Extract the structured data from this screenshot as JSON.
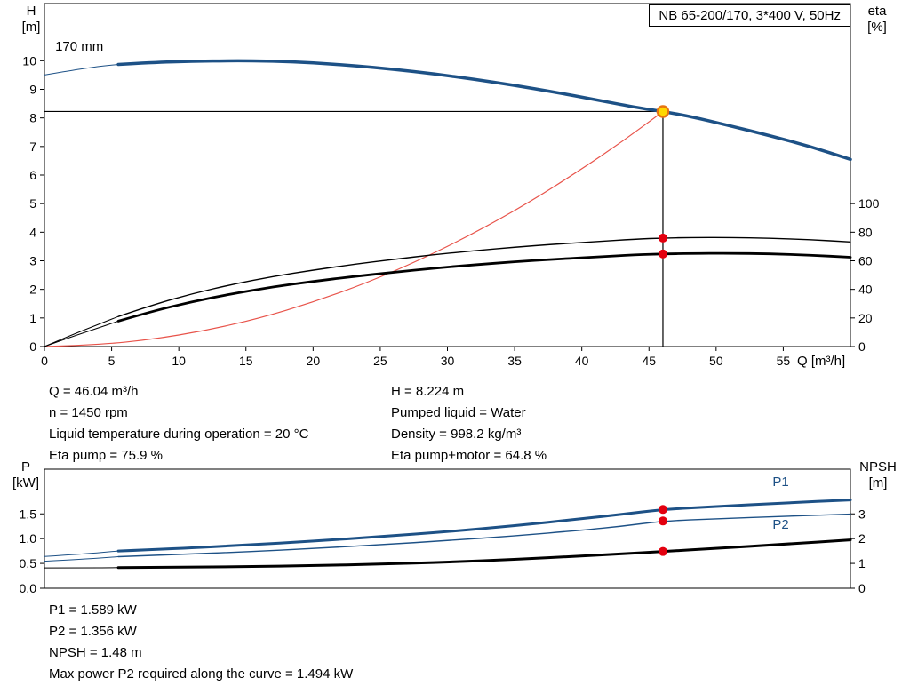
{
  "title_box": "NB 65-200/170, 3*400 V, 50Hz",
  "colors": {
    "curve_blue": "#1d5186",
    "system_curve_red": "#e8534a",
    "dot_red": "#e3000f",
    "duty_fill": "#ffd800",
    "duty_ring": "#e87511",
    "axis_black": "#000000"
  },
  "axis_labels": {
    "h_top": "H",
    "h_unit": "[m]",
    "eta_top": "eta",
    "eta_unit": "[%]",
    "q": "Q [m³/h]",
    "p_top": "P",
    "p_unit": "[kW]",
    "npsh_top": "NPSH",
    "npsh_unit": "[m]"
  },
  "info_top": {
    "left": [
      "Q = 46.04 m³/h",
      "n = 1450 rpm",
      "Liquid temperature during operation = 20 °C",
      "Eta pump = 75.9 %"
    ],
    "right": [
      "H = 8.224 m",
      "Pumped liquid = Water",
      "Density = 998.2 kg/m³",
      "Eta pump+motor = 64.8 %"
    ]
  },
  "info_bottom": [
    "P1 = 1.589 kW",
    "P2 = 1.356 kW",
    "NPSH = 1.48 m",
    "Max power P2 required along the curve = 1.494 kW"
  ],
  "chart_data": [
    {
      "type": "line",
      "name": "qh-eta-chart",
      "title": "NB 65-200/170, 3*400 V, 50Hz",
      "xlabel": "Q [m³/h]",
      "ylabel_left": "H [m]",
      "ylabel_right": "eta [%]",
      "xlim": [
        0,
        60
      ],
      "ylim_left": [
        0,
        12
      ],
      "right_scale_to_left": 0.05,
      "grid": false,
      "x_ticks": {
        "values": [
          0,
          5,
          10,
          15,
          20,
          25,
          30,
          35,
          40,
          45,
          50,
          55
        ],
        "labels": [
          "0",
          "5",
          "10",
          "15",
          "20",
          "25",
          "30",
          "35",
          "40",
          "45",
          "50",
          "55"
        ]
      },
      "y_left_ticks": {
        "values": [
          0,
          1,
          2,
          3,
          4,
          5,
          6,
          7,
          8,
          9,
          10
        ],
        "labels": [
          "0",
          "1",
          "2",
          "3",
          "4",
          "5",
          "6",
          "7",
          "8",
          "9",
          "10"
        ]
      },
      "y_right_ticks": {
        "values": [
          0,
          20,
          40,
          60,
          80,
          100
        ],
        "labels": [
          "0",
          "20",
          "40",
          "60",
          "80",
          "100"
        ]
      },
      "duty_point": {
        "q": 46.04,
        "h": 8.224
      },
      "series": [
        {
          "name": "system-curve",
          "axis": "left",
          "color": "#e8534a",
          "width": 1.2,
          "points": [
            [
              0,
              0
            ],
            [
              4,
              0.06
            ],
            [
              8,
              0.25
            ],
            [
              12,
              0.56
            ],
            [
              16,
              0.99
            ],
            [
              20,
              1.55
            ],
            [
              24,
              2.23
            ],
            [
              28,
              3.04
            ],
            [
              32,
              3.97
            ],
            [
              36,
              5.02
            ],
            [
              40,
              6.21
            ],
            [
              43,
              7.17
            ],
            [
              46.04,
              8.224
            ]
          ]
        },
        {
          "name": "eta-pump-curve-lead",
          "axis": "right",
          "color": "#000000",
          "width": 1,
          "points": [
            [
              0,
              0
            ],
            [
              2,
              8
            ],
            [
              4,
              15.5
            ],
            [
              5.5,
              21
            ]
          ]
        },
        {
          "name": "eta-pump-curve",
          "axis": "right",
          "color": "#000000",
          "width": 1.4,
          "points": [
            [
              5.5,
              21
            ],
            [
              8,
              29
            ],
            [
              11,
              37
            ],
            [
              14,
              43.5
            ],
            [
              17,
              49
            ],
            [
              20,
              53.5
            ],
            [
              23,
              57.5
            ],
            [
              26,
              61
            ],
            [
              29,
              64.3
            ],
            [
              32,
              67
            ],
            [
              35,
              69.5
            ],
            [
              38,
              71.6
            ],
            [
              41,
              73.3
            ],
            [
              44,
              75.2
            ],
            [
              46.04,
              75.9
            ],
            [
              48,
              76.2
            ],
            [
              51,
              76.3
            ],
            [
              54,
              75.8
            ],
            [
              57,
              74.8
            ],
            [
              60,
              73.2
            ]
          ]
        },
        {
          "name": "eta-pump-motor-curve-lead",
          "axis": "right",
          "color": "#000000",
          "width": 1,
          "points": [
            [
              0,
              0
            ],
            [
              2,
              6.8
            ],
            [
              4,
              13
            ],
            [
              5.5,
              17.8
            ]
          ]
        },
        {
          "name": "eta-pump-motor-curve",
          "axis": "right",
          "color": "#000000",
          "width": 2.8,
          "points": [
            [
              5.5,
              17.8
            ],
            [
              8,
              24.6
            ],
            [
              11,
              31.4
            ],
            [
              14,
              37
            ],
            [
              17,
              41.7
            ],
            [
              20,
              45.6
            ],
            [
              23,
              49
            ],
            [
              26,
              52
            ],
            [
              29,
              54.8
            ],
            [
              32,
              57.2
            ],
            [
              35,
              59.3
            ],
            [
              38,
              61.1
            ],
            [
              41,
              62.6
            ],
            [
              44,
              64.2
            ],
            [
              46.04,
              64.8
            ],
            [
              48,
              65.1
            ],
            [
              51,
              65.3
            ],
            [
              54,
              64.9
            ],
            [
              57,
              64
            ],
            [
              60,
              62.5
            ]
          ]
        },
        {
          "name": "qh-curve-lead",
          "axis": "left",
          "color": "#1d5186",
          "width": 1,
          "points": [
            [
              0,
              9.5
            ],
            [
              2,
              9.66
            ],
            [
              4,
              9.8
            ],
            [
              5.5,
              9.87
            ]
          ]
        },
        {
          "name": "qh-curve",
          "axis": "left",
          "color": "#1d5186",
          "width": 3.5,
          "points": [
            [
              5.5,
              9.87
            ],
            [
              8,
              9.94
            ],
            [
              11,
              9.98
            ],
            [
              14,
              10
            ],
            [
              17,
              9.99
            ],
            [
              20,
              9.93
            ],
            [
              23,
              9.83
            ],
            [
              26,
              9.7
            ],
            [
              29,
              9.54
            ],
            [
              32,
              9.35
            ],
            [
              35,
              9.14
            ],
            [
              38,
              8.9
            ],
            [
              41,
              8.64
            ],
            [
              44,
              8.37
            ],
            [
              46.04,
              8.224
            ],
            [
              48,
              8.06
            ],
            [
              51,
              7.73
            ],
            [
              54,
              7.38
            ],
            [
              57,
              7
            ],
            [
              60,
              6.55
            ]
          ]
        }
      ],
      "markers": [
        {
          "name": "eta-pump-dot",
          "x": 46.04,
          "y": 75.9,
          "axis": "right",
          "r": 5,
          "fill": "#e3000f"
        },
        {
          "name": "eta-pump-motor-dot",
          "x": 46.04,
          "y": 64.8,
          "axis": "right",
          "r": 5,
          "fill": "#e3000f"
        },
        {
          "name": "duty-point",
          "x": 46.04,
          "y": 8.224,
          "axis": "left",
          "r": 6,
          "fill": "#ffd800",
          "stroke": "#e87511",
          "stroke_width": 2.5
        }
      ],
      "labels": [
        {
          "name": "impeller-diameter-label",
          "text": "170 mm",
          "x": 0.8,
          "y": 10.35,
          "axis": "left",
          "color": "#000000",
          "anchor": "start",
          "size": 15
        }
      ]
    },
    {
      "type": "line",
      "name": "power-npsh-chart",
      "xlabel": "Q [m³/h]",
      "ylabel_left": "P [kW]",
      "ylabel_right": "NPSH [m]",
      "xlim": [
        0,
        60
      ],
      "ylim_left": [
        0,
        2.4
      ],
      "right_scale_to_left": 0.5,
      "grid": false,
      "x_ticks": {
        "values": [],
        "labels": []
      },
      "y_left_ticks": {
        "values": [
          0,
          0.5,
          1,
          1.5
        ],
        "labels": [
          "0.0",
          "0.5",
          "1.0",
          "1.5"
        ]
      },
      "y_right_ticks": {
        "values": [
          0,
          1,
          2,
          3
        ],
        "labels": [
          "0",
          "1",
          "2",
          "3"
        ]
      },
      "series": [
        {
          "name": "npsh-curve-lead",
          "axis": "right",
          "color": "#000000",
          "width": 1,
          "points": [
            [
              0,
              0.82
            ],
            [
              3,
              0.82
            ],
            [
              5.5,
              0.83
            ]
          ]
        },
        {
          "name": "npsh-curve",
          "axis": "right",
          "color": "#000000",
          "width": 3,
          "points": [
            [
              5.5,
              0.83
            ],
            [
              10,
              0.845
            ],
            [
              15,
              0.87
            ],
            [
              20,
              0.91
            ],
            [
              25,
              0.97
            ],
            [
              30,
              1.05
            ],
            [
              35,
              1.16
            ],
            [
              40,
              1.3
            ],
            [
              43,
              1.39
            ],
            [
              46.04,
              1.48
            ],
            [
              50,
              1.61
            ],
            [
              55,
              1.77
            ],
            [
              60,
              1.95
            ]
          ]
        },
        {
          "name": "p2-curve-lead",
          "axis": "left",
          "color": "#1d5186",
          "width": 1,
          "points": [
            [
              0,
              0.545
            ],
            [
              3,
              0.585
            ],
            [
              5.5,
              0.635
            ]
          ]
        },
        {
          "name": "p2-curve",
          "axis": "left",
          "color": "#1d5186",
          "width": 1.4,
          "points": [
            [
              5.5,
              0.635
            ],
            [
              10,
              0.68
            ],
            [
              15,
              0.735
            ],
            [
              20,
              0.8
            ],
            [
              25,
              0.875
            ],
            [
              30,
              0.96
            ],
            [
              35,
              1.055
            ],
            [
              40,
              1.17
            ],
            [
              43,
              1.25
            ],
            [
              46.04,
              1.356
            ],
            [
              50,
              1.4
            ],
            [
              55,
              1.45
            ],
            [
              60,
              1.494
            ]
          ]
        },
        {
          "name": "p1-curve-lead",
          "axis": "left",
          "color": "#1d5186",
          "width": 1,
          "points": [
            [
              0,
              0.64
            ],
            [
              3,
              0.69
            ],
            [
              5.5,
              0.75
            ]
          ]
        },
        {
          "name": "p1-curve",
          "axis": "left",
          "color": "#1d5186",
          "width": 3,
          "points": [
            [
              5.5,
              0.75
            ],
            [
              10,
              0.8
            ],
            [
              15,
              0.87
            ],
            [
              20,
              0.95
            ],
            [
              25,
              1.04
            ],
            [
              30,
              1.14
            ],
            [
              35,
              1.26
            ],
            [
              40,
              1.4
            ],
            [
              43,
              1.49
            ],
            [
              46.04,
              1.589
            ],
            [
              50,
              1.65
            ],
            [
              55,
              1.72
            ],
            [
              60,
              1.78
            ]
          ]
        }
      ],
      "markers": [
        {
          "name": "p1-dot",
          "x": 46.04,
          "y": 1.589,
          "axis": "left",
          "r": 5,
          "fill": "#e3000f"
        },
        {
          "name": "p2-dot",
          "x": 46.04,
          "y": 1.356,
          "axis": "left",
          "r": 5,
          "fill": "#e3000f"
        },
        {
          "name": "npsh-dot",
          "x": 46.04,
          "y": 1.48,
          "axis": "right",
          "r": 5,
          "fill": "#e3000f"
        }
      ],
      "labels": [
        {
          "name": "p1-curve-label",
          "text": "P1",
          "x": 54.2,
          "y": 2.06,
          "axis": "left",
          "color": "#1d5186",
          "anchor": "start",
          "size": 15
        },
        {
          "name": "p2-curve-label",
          "text": "P2",
          "x": 54.2,
          "y": 1.2,
          "axis": "left",
          "color": "#1d5186",
          "anchor": "start",
          "size": 15
        }
      ]
    }
  ]
}
